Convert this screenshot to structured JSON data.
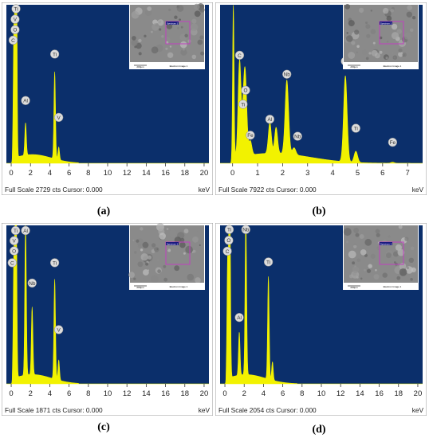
{
  "colors": {
    "plot_bg": "#0b2f6b",
    "spectrum": "#f2f200",
    "frame": "#9a9a9a",
    "status_bg": "#ffffff",
    "marker": "#dcdcdc",
    "roi": "#c040c0"
  },
  "chart_data": [
    {
      "type": "area",
      "caption": "(a)",
      "status": "Full Scale 2729 cts Cursor: 0.000",
      "xunit": "keV",
      "xticks": [
        0,
        2,
        4,
        6,
        8,
        10,
        12,
        14,
        16,
        18,
        20
      ],
      "xlim": [
        -0.5,
        20.5
      ],
      "ylim": [
        0,
        2729
      ],
      "peaks": [
        {
          "x": 0.28,
          "y": 2200,
          "w": 0.07,
          "label": "C"
        },
        {
          "x": 0.52,
          "y": 2729,
          "w": 0.07,
          "label": "O"
        },
        {
          "x": 0.45,
          "y": 2500,
          "w": 0.07,
          "label": "Ti"
        },
        {
          "x": 0.51,
          "y": 2350,
          "w": 0.07,
          "label": "V"
        },
        {
          "x": 1.49,
          "y": 560,
          "w": 0.08,
          "label": "Al"
        },
        {
          "x": 4.51,
          "y": 1500,
          "w": 0.08,
          "label": "Ti"
        },
        {
          "x": 4.93,
          "y": 220,
          "w": 0.08,
          "label": "V"
        }
      ],
      "markers": [
        {
          "x": 0.5,
          "y": 2660,
          "label": "Ti"
        },
        {
          "x": 0.4,
          "y": 2480,
          "label": "V"
        },
        {
          "x": 0.4,
          "y": 2300,
          "label": "O"
        },
        {
          "x": 0.2,
          "y": 2120,
          "label": "C"
        },
        {
          "x": 1.49,
          "y": 1080,
          "label": "Al"
        },
        {
          "x": 4.51,
          "y": 1880,
          "label": "Ti"
        },
        {
          "x": 4.93,
          "y": 790,
          "label": "V"
        }
      ],
      "background": {
        "peak": 150,
        "center": 2.2,
        "width": 4.0,
        "end": 7.0
      },
      "image_labels": [
        "Spectrum 1",
        "200µm",
        "Electron Image 1"
      ]
    },
    {
      "type": "area",
      "caption": "(b)",
      "status": "Full Scale 7922 cts Cursor: 0.000",
      "xunit": "keV",
      "xticks": [
        0,
        1,
        2,
        3,
        4,
        5,
        6,
        7
      ],
      "xlim": [
        -0.5,
        7.6
      ],
      "ylim": [
        0,
        7922
      ],
      "peaks": [
        {
          "x": 0.03,
          "y": 7922,
          "w": 0.03,
          "label": ""
        },
        {
          "x": 0.28,
          "y": 4800,
          "w": 0.06,
          "label": "C"
        },
        {
          "x": 0.45,
          "y": 2350,
          "w": 0.06,
          "label": "Ti"
        },
        {
          "x": 0.52,
          "y": 2900,
          "w": 0.06,
          "label": "O"
        },
        {
          "x": 0.71,
          "y": 700,
          "w": 0.06,
          "label": "Fe"
        },
        {
          "x": 1.49,
          "y": 1550,
          "w": 0.06,
          "label": "Al"
        },
        {
          "x": 1.74,
          "y": 1300,
          "w": 0.06,
          "label": ""
        },
        {
          "x": 2.17,
          "y": 3700,
          "w": 0.07,
          "label": "Nb"
        },
        {
          "x": 2.46,
          "y": 350,
          "w": 0.07,
          "label": "Nb"
        },
        {
          "x": 4.51,
          "y": 4300,
          "w": 0.07,
          "label": "Ti"
        },
        {
          "x": 4.93,
          "y": 560,
          "w": 0.07,
          "label": "Ti"
        },
        {
          "x": 6.4,
          "y": 50,
          "w": 0.07,
          "label": "Fe"
        }
      ],
      "markers": [
        {
          "x": 0.28,
          "y": 5400,
          "label": "C"
        },
        {
          "x": 0.52,
          "y": 3650,
          "label": "O"
        },
        {
          "x": 0.42,
          "y": 2950,
          "label": "Ti"
        },
        {
          "x": 0.71,
          "y": 1400,
          "label": "Fe"
        },
        {
          "x": 1.49,
          "y": 2200,
          "label": "Al"
        },
        {
          "x": 2.17,
          "y": 4450,
          "label": "Nb"
        },
        {
          "x": 2.6,
          "y": 1350,
          "label": "Nb"
        },
        {
          "x": 4.51,
          "y": 5100,
          "label": "Ti"
        },
        {
          "x": 4.93,
          "y": 1750,
          "label": "Ti"
        },
        {
          "x": 6.4,
          "y": 1050,
          "label": "Fe"
        }
      ],
      "background": {
        "peak": 500,
        "center": 1.6,
        "width": 3.0,
        "end": 7.5
      },
      "image_labels": [
        "Spectrum 1",
        "200µm",
        "Electron Image 1"
      ]
    },
    {
      "type": "area",
      "caption": "(c)",
      "status": "Full Scale 1871 cts Cursor: 0.000",
      "xunit": "keV",
      "xticks": [
        0,
        2,
        4,
        6,
        8,
        10,
        12,
        14,
        16,
        18,
        20
      ],
      "xlim": [
        -0.5,
        20.5
      ],
      "ylim": [
        0,
        1871
      ],
      "peaks": [
        {
          "x": 0.28,
          "y": 1450,
          "w": 0.07,
          "label": "C"
        },
        {
          "x": 0.45,
          "y": 1871,
          "w": 0.07,
          "label": "Ti"
        },
        {
          "x": 0.52,
          "y": 1650,
          "w": 0.07,
          "label": "O"
        },
        {
          "x": 1.49,
          "y": 1800,
          "w": 0.08,
          "label": "Al"
        },
        {
          "x": 2.17,
          "y": 800,
          "w": 0.08,
          "label": "Nb"
        },
        {
          "x": 4.51,
          "y": 1180,
          "w": 0.08,
          "label": "Ti"
        },
        {
          "x": 4.93,
          "y": 240,
          "w": 0.08,
          "label": "V"
        }
      ],
      "markers": [
        {
          "x": 0.45,
          "y": 1810,
          "label": "Ti"
        },
        {
          "x": 0.3,
          "y": 1690,
          "label": "V"
        },
        {
          "x": 0.3,
          "y": 1570,
          "label": "O"
        },
        {
          "x": 0.1,
          "y": 1430,
          "label": "C"
        },
        {
          "x": 1.49,
          "y": 1810,
          "label": "Al"
        },
        {
          "x": 2.17,
          "y": 1190,
          "label": "Nb"
        },
        {
          "x": 4.51,
          "y": 1430,
          "label": "Ti"
        },
        {
          "x": 4.93,
          "y": 640,
          "label": "V"
        }
      ],
      "background": {
        "peak": 110,
        "center": 2.2,
        "width": 4.0,
        "end": 7.0
      },
      "image_labels": [
        "Spectrum 1",
        "200µm",
        "Electron Image 1"
      ]
    },
    {
      "type": "area",
      "caption": "(d)",
      "status": "Full Scale 2054 cts Cursor: 0.000",
      "xunit": "keV",
      "xticks": [
        0,
        2,
        4,
        6,
        8,
        10,
        12,
        14,
        16,
        18,
        20
      ],
      "xlim": [
        -0.5,
        20.5
      ],
      "ylim": [
        0,
        2054
      ],
      "peaks": [
        {
          "x": 0.28,
          "y": 1500,
          "w": 0.07,
          "label": "C"
        },
        {
          "x": 0.45,
          "y": 1750,
          "w": 0.07,
          "label": "Ti"
        },
        {
          "x": 0.52,
          "y": 1650,
          "w": 0.07,
          "label": "O"
        },
        {
          "x": 1.49,
          "y": 560,
          "w": 0.08,
          "label": "Al"
        },
        {
          "x": 2.17,
          "y": 2054,
          "w": 0.08,
          "label": "Nb"
        },
        {
          "x": 4.51,
          "y": 1330,
          "w": 0.08,
          "label": "Ti"
        },
        {
          "x": 4.93,
          "y": 240,
          "w": 0.08,
          "label": ""
        }
      ],
      "markers": [
        {
          "x": 0.45,
          "y": 2000,
          "label": "Ti"
        },
        {
          "x": 0.4,
          "y": 1860,
          "label": "O"
        },
        {
          "x": 0.25,
          "y": 1720,
          "label": "C"
        },
        {
          "x": 1.49,
          "y": 860,
          "label": "Al"
        },
        {
          "x": 2.17,
          "y": 2000,
          "label": "Nb"
        },
        {
          "x": 4.51,
          "y": 1580,
          "label": "Ti"
        }
      ],
      "background": {
        "peak": 120,
        "center": 2.2,
        "width": 4.0,
        "end": 7.5
      },
      "image_labels": [
        "Spectrum 1",
        "200µm",
        "Electron Image 1"
      ]
    }
  ]
}
